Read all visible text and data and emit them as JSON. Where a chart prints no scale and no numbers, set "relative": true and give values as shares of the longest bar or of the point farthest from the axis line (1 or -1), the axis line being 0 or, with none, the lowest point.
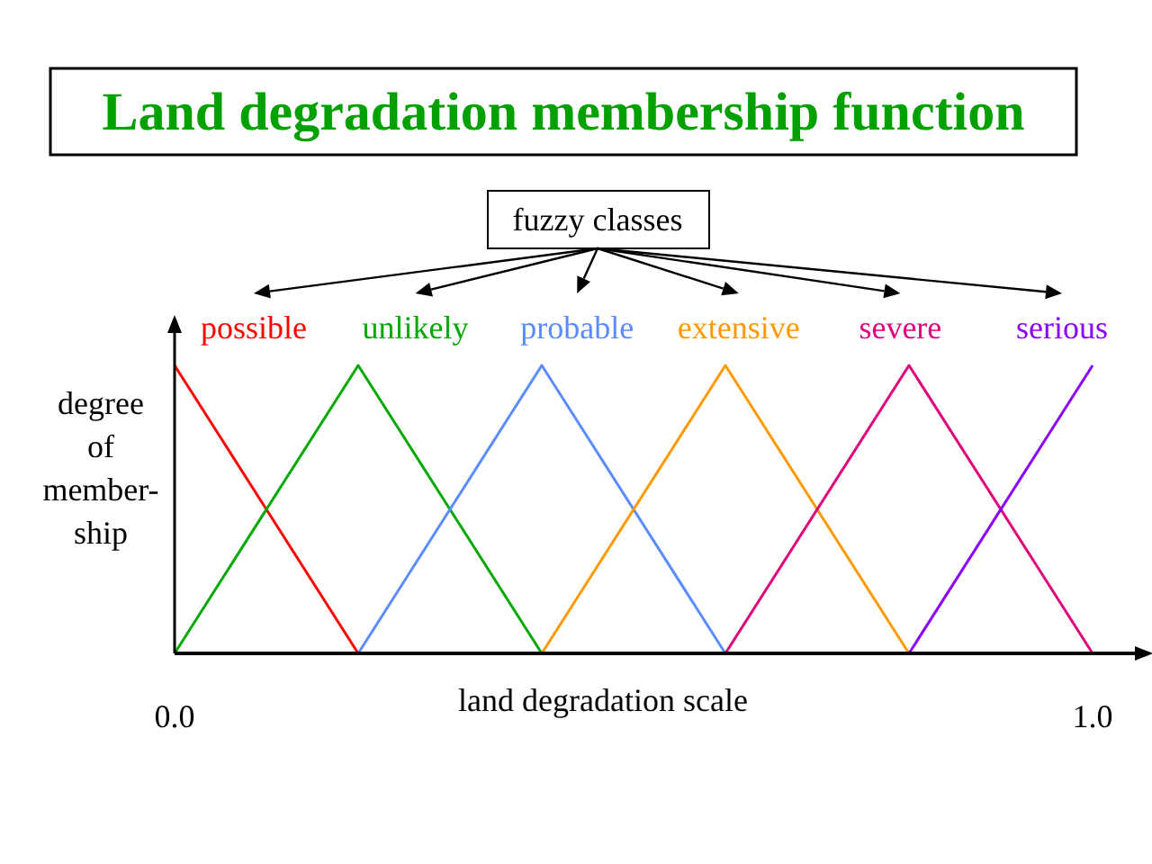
{
  "chart_data": {
    "type": "line",
    "title": "Land degradation membership function",
    "xlabel": "land degradation scale",
    "ylabel": "degree\nof\nmember-\nship",
    "annotations": [
      "fuzzy classes"
    ],
    "relative": true,
    "marker": "none",
    "line_style": "solid",
    "xlim": [
      0,
      1.05
    ],
    "xticks": [
      {
        "value": 0,
        "label": "0.0"
      },
      {
        "value": 1,
        "label": "1.0"
      }
    ],
    "series": [
      {
        "name": "possible",
        "color": "#ff0000",
        "x": [
          0,
          0.2
        ],
        "values": [
          1,
          0
        ]
      },
      {
        "name": "unlikely",
        "color": "#00a800",
        "x": [
          0,
          0.2,
          0.4
        ],
        "values": [
          0,
          1,
          0
        ]
      },
      {
        "name": "probable",
        "color": "#5b8cff",
        "x": [
          0.2,
          0.4,
          0.6
        ],
        "values": [
          0,
          1,
          0
        ]
      },
      {
        "name": "extensive",
        "color": "#ff9900",
        "x": [
          0.4,
          0.6,
          0.8
        ],
        "values": [
          0,
          1,
          0
        ]
      },
      {
        "name": "severe",
        "color": "#e0007a",
        "x": [
          0.6,
          0.8,
          1.0
        ],
        "values": [
          0,
          1,
          0
        ]
      },
      {
        "name": "serious",
        "color": "#8a00ff",
        "x": [
          0.8,
          1.0
        ],
        "values": [
          0,
          1
        ]
      }
    ]
  }
}
